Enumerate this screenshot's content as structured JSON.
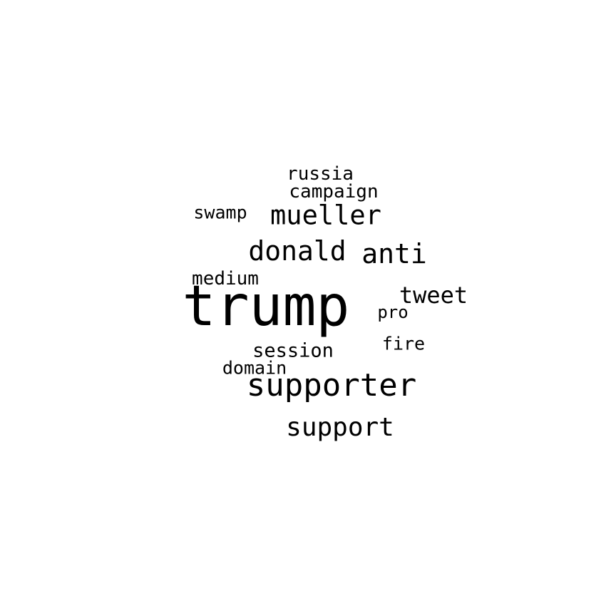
{
  "background_color": "#ffffff",
  "text_color": "#000000",
  "words": {
    "trump": "trump",
    "supporter": "supporter",
    "donald": "donald",
    "anti": "anti",
    "mueller": "mueller",
    "support": "support",
    "tweet": "tweet",
    "session": "session",
    "russia": "russia",
    "campaign": "campaign",
    "medium": "medium",
    "swamp": "swamp",
    "domain": "domain",
    "pro": "pro",
    "fire": "fire"
  }
}
